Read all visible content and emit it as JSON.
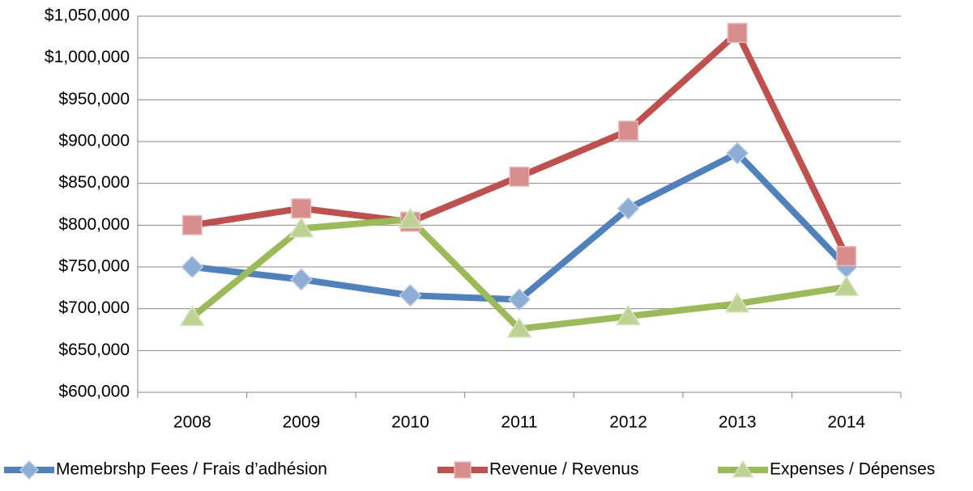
{
  "chart_data": {
    "type": "line",
    "categories": [
      "2008",
      "2009",
      "2010",
      "2011",
      "2012",
      "2013",
      "2014"
    ],
    "series": [
      {
        "name": "Memebrshp Fees / Frais d’adhésion",
        "color": "#4f81bd",
        "marker": "diamond",
        "values": [
          750000,
          735000,
          716000,
          711000,
          820000,
          886000,
          750000
        ]
      },
      {
        "name": "Revenue / Revenus",
        "color": "#c0504d",
        "marker": "square",
        "values": [
          800000,
          820000,
          804000,
          858000,
          913000,
          1030000,
          763000
        ]
      },
      {
        "name": "Expenses / Dépenses",
        "color": "#9bbb59",
        "marker": "triangle",
        "values": [
          690000,
          796000,
          807000,
          676000,
          691000,
          706000,
          726000
        ]
      }
    ],
    "ylim": [
      600000,
      1050000
    ],
    "yticks": [
      {
        "value": 600000,
        "label": "$600,000"
      },
      {
        "value": 650000,
        "label": "$650,000"
      },
      {
        "value": 700000,
        "label": "$700,000"
      },
      {
        "value": 750000,
        "label": "$750,000"
      },
      {
        "value": 800000,
        "label": "$800,000"
      },
      {
        "value": 850000,
        "label": "$850,000"
      },
      {
        "value": 900000,
        "label": "$900,000"
      },
      {
        "value": 950000,
        "label": "$950,000"
      },
      {
        "value": 1000000,
        "label": "$1,000,000"
      },
      {
        "value": 1050000,
        "label": "$1,050,000"
      }
    ],
    "grid": true,
    "legend": "bottom"
  }
}
